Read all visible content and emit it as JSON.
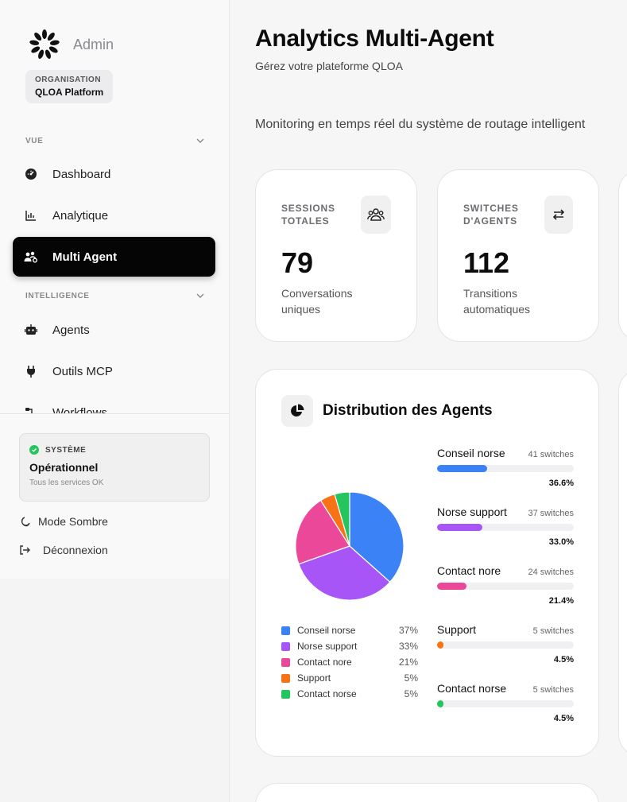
{
  "sidebar": {
    "admin_label": "Admin",
    "org": {
      "caption": "ORGANISATION",
      "name": "QLOA Platform"
    },
    "sections": [
      {
        "label": "VUE"
      },
      {
        "label": "INTELLIGENCE"
      }
    ],
    "items": [
      {
        "label": "Dashboard",
        "icon": "dashboard-gauge-icon"
      },
      {
        "label": "Analytique",
        "icon": "bar-chart-icon"
      },
      {
        "label": "Multi Agent",
        "icon": "users-cog-icon",
        "active": true
      },
      {
        "label": "Agents",
        "icon": "robot-icon"
      },
      {
        "label": "Outils MCP",
        "icon": "plug-icon"
      },
      {
        "label": "Workflows",
        "icon": "workflow-icon"
      }
    ],
    "status": {
      "caption": "SYSTÈME",
      "title": "Opérationnel",
      "subtitle": "Tous les services OK"
    },
    "dark_mode_label": "Mode Sombre",
    "logout_label": "Déconnexion"
  },
  "main": {
    "title": "Analytics Multi-Agent",
    "subtitle": "Gérez votre plateforme QLOA",
    "description": "Monitoring en temps réel du système de routage intelligent",
    "kpis": [
      {
        "caption_line1": "SESSIONS",
        "caption_line2": "TOTALES",
        "value": "79",
        "desc_line1": "Conversations",
        "desc_line2": "uniques",
        "icon": "users-group-icon"
      },
      {
        "caption_line1": "SWITCHES",
        "caption_line2": "D'AGENTS",
        "value": "112",
        "desc_line1": "Transitions",
        "desc_line2": "automatiques",
        "icon": "swap-arrows-icon"
      }
    ],
    "distribution": {
      "title": "Distribution des Agents",
      "icon": "pie-chart-icon"
    }
  },
  "chart_data": {
    "type": "pie",
    "title": "Distribution des Agents",
    "series": [
      {
        "name": "Conseil norse",
        "legend_pct": "37%",
        "switches_label": "41 switches",
        "switches": 41,
        "pct_label": "36.6%",
        "pct": 36.6,
        "color": "#3b82f6"
      },
      {
        "name": "Norse support",
        "legend_pct": "33%",
        "switches_label": "37 switches",
        "switches": 37,
        "pct_label": "33.0%",
        "pct": 33.0,
        "color": "#a855f7"
      },
      {
        "name": "Contact nore",
        "legend_pct": "21%",
        "switches_label": "24 switches",
        "switches": 24,
        "pct_label": "21.4%",
        "pct": 21.4,
        "color": "#ec4899"
      },
      {
        "name": "Support",
        "legend_pct": "5%",
        "switches_label": "5 switches",
        "switches": 5,
        "pct_label": "4.5%",
        "pct": 4.5,
        "color": "#f97316"
      },
      {
        "name": "Contact norse",
        "legend_pct": "5%",
        "switches_label": "5 switches",
        "switches": 5,
        "pct_label": "4.5%",
        "pct": 4.5,
        "color": "#22c55e"
      }
    ]
  }
}
